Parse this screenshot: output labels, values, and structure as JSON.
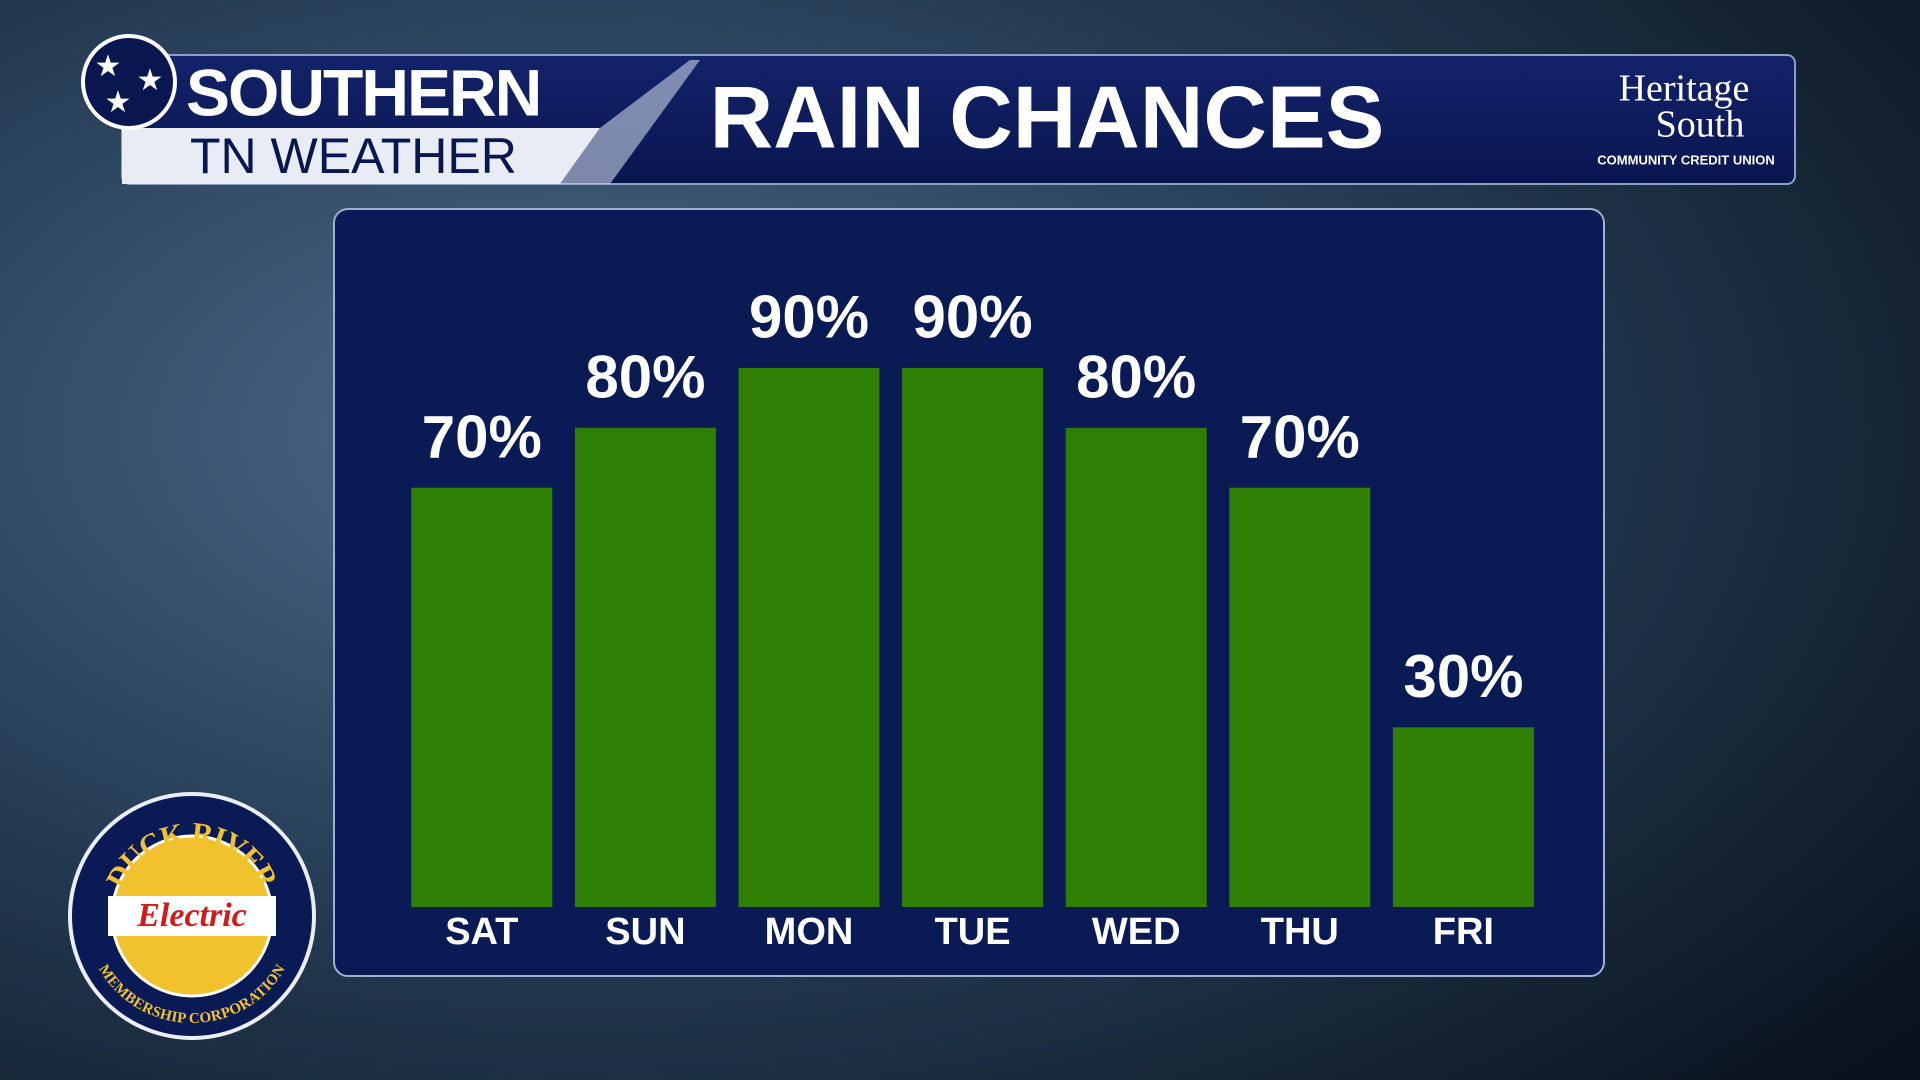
{
  "header": {
    "brand_top": "SOUTHERN",
    "brand_bottom": "TN WEATHER"
  },
  "sponsor": {
    "line1": "Heritage",
    "line2": "South",
    "line3": "COMMUNITY CREDIT UNION"
  },
  "badge": {
    "top": "DUCK RIVER",
    "middle": "Electric",
    "bottom": "MEMBERSHIP CORPORATION"
  },
  "chart_data": {
    "type": "bar",
    "title": "RAIN CHANCES",
    "categories": [
      "SAT",
      "SUN",
      "MON",
      "TUE",
      "WED",
      "THU",
      "FRI"
    ],
    "values": [
      70,
      80,
      90,
      90,
      80,
      70,
      30
    ],
    "value_labels": [
      "70%",
      "80%",
      "90%",
      "90%",
      "80%",
      "70%",
      "30%"
    ],
    "color": "#2f7f05"
  }
}
